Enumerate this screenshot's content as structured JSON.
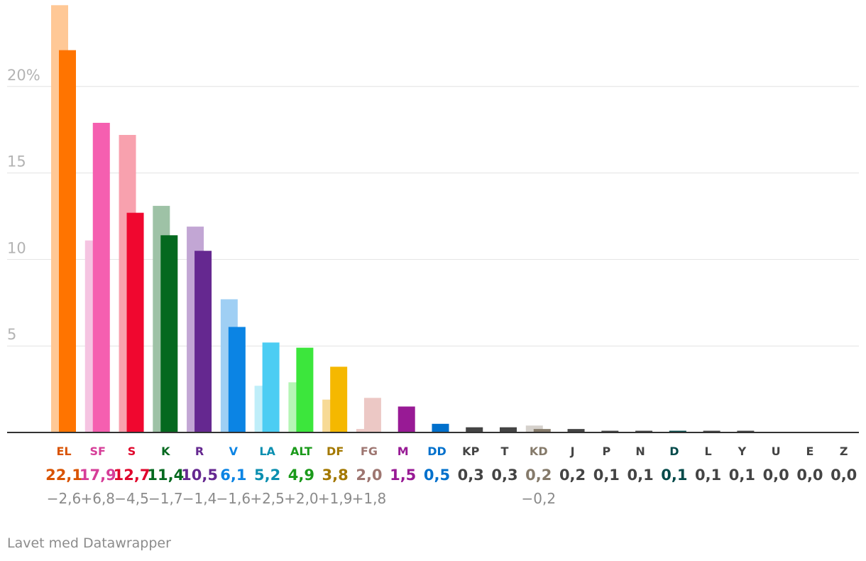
{
  "chart_data": {
    "type": "bar",
    "ylim": [
      0,
      25
    ],
    "yticks": [
      {
        "value": 5,
        "label": "5"
      },
      {
        "value": 10,
        "label": "10"
      },
      {
        "value": 15,
        "label": "15"
      },
      {
        "value": 20,
        "label": "20%"
      }
    ],
    "grid": true,
    "categories": [
      "EL",
      "SF",
      "S",
      "K",
      "R",
      "V",
      "LA",
      "ALT",
      "DF",
      "FG",
      "M",
      "DD",
      "KP",
      "T",
      "KD",
      "J",
      "P",
      "N",
      "D",
      "L",
      "Y",
      "U",
      "E",
      "Z"
    ],
    "series": [
      {
        "values": [
          24.7,
          11.1,
          17.2,
          13.1,
          11.9,
          7.7,
          2.7,
          2.9,
          1.9,
          0.2,
          null,
          null,
          null,
          null,
          0.4,
          null,
          null,
          null,
          null,
          null,
          null,
          null,
          null,
          null
        ]
      },
      {
        "values": [
          22.1,
          17.9,
          12.7,
          11.4,
          10.5,
          6.1,
          5.2,
          4.9,
          3.8,
          2.0,
          1.5,
          0.5,
          0.3,
          0.3,
          0.2,
          0.2,
          0.1,
          0.1,
          0.1,
          0.1,
          0.1,
          0.0,
          0.0,
          0.0
        ]
      }
    ],
    "value_labels": [
      "22,1",
      "17,9",
      "12,7",
      "11,4",
      "10,5",
      "6,1",
      "5,2",
      "4,9",
      "3,8",
      "2,0",
      "1,5",
      "0,5",
      "0,3",
      "0,3",
      "0,2",
      "0,2",
      "0,1",
      "0,1",
      "0,1",
      "0,1",
      "0,1",
      "0,0",
      "0,0",
      "0,0"
    ],
    "change_labels": [
      "−2,6",
      "+6,8",
      "−4,5",
      "−1,7",
      "−1,4",
      "−1,6",
      "+2,5",
      "+2,0",
      "+1,9",
      "+1,8",
      "",
      "",
      "",
      "",
      "−0,2",
      "",
      "",
      "",
      "",
      "",
      "",
      "",
      "",
      ""
    ],
    "colors": [
      "#ff7400",
      "#f55fb0",
      "#f0072f",
      "#05691f",
      "#652890",
      "#0b84e4",
      "#4ccdf3",
      "#3ce63c",
      "#f5b800",
      "#ecc8c5",
      "#981a95",
      "#0070cc",
      "#444444",
      "#444444",
      "#857a6a",
      "#444444",
      "#444444",
      "#444444",
      "#044a4a",
      "#444444",
      "#444444",
      "#444444",
      "#444444",
      "#444444"
    ],
    "prev_colors": [
      "#ffc896",
      "#f5c4e2",
      "#f8a1ae",
      "#9ec2a6",
      "#c2a6d4",
      "#9fcff4",
      "#bfeef9",
      "#b5f5b5",
      "#f7da96",
      "#ecc8c5",
      "#d9b2d8",
      "#a6cbee",
      "#b4b4b4",
      "#b4b4b4",
      "#d5d1cc",
      "#b4b4b4",
      "#b4b4b4",
      "#b4b4b4",
      "#a9c4c4",
      "#b4b4b4",
      "#b4b4b4",
      "#b4b4b4",
      "#b4b4b4",
      "#b4b4b4"
    ],
    "label_colors": [
      "#d95300",
      "#d63d98",
      "#e0062c",
      "#05691f",
      "#652890",
      "#0b84e4",
      "#0b8fb0",
      "#1a9a1a",
      "#a37800",
      "#9e7671",
      "#981a95",
      "#0070cc",
      "#444444",
      "#444444",
      "#857a6a",
      "#444444",
      "#444444",
      "#444444",
      "#044a4a",
      "#444444",
      "#444444",
      "#444444",
      "#444444",
      "#444444"
    ]
  },
  "footer": {
    "credit": "Lavet med Datawrapper"
  }
}
